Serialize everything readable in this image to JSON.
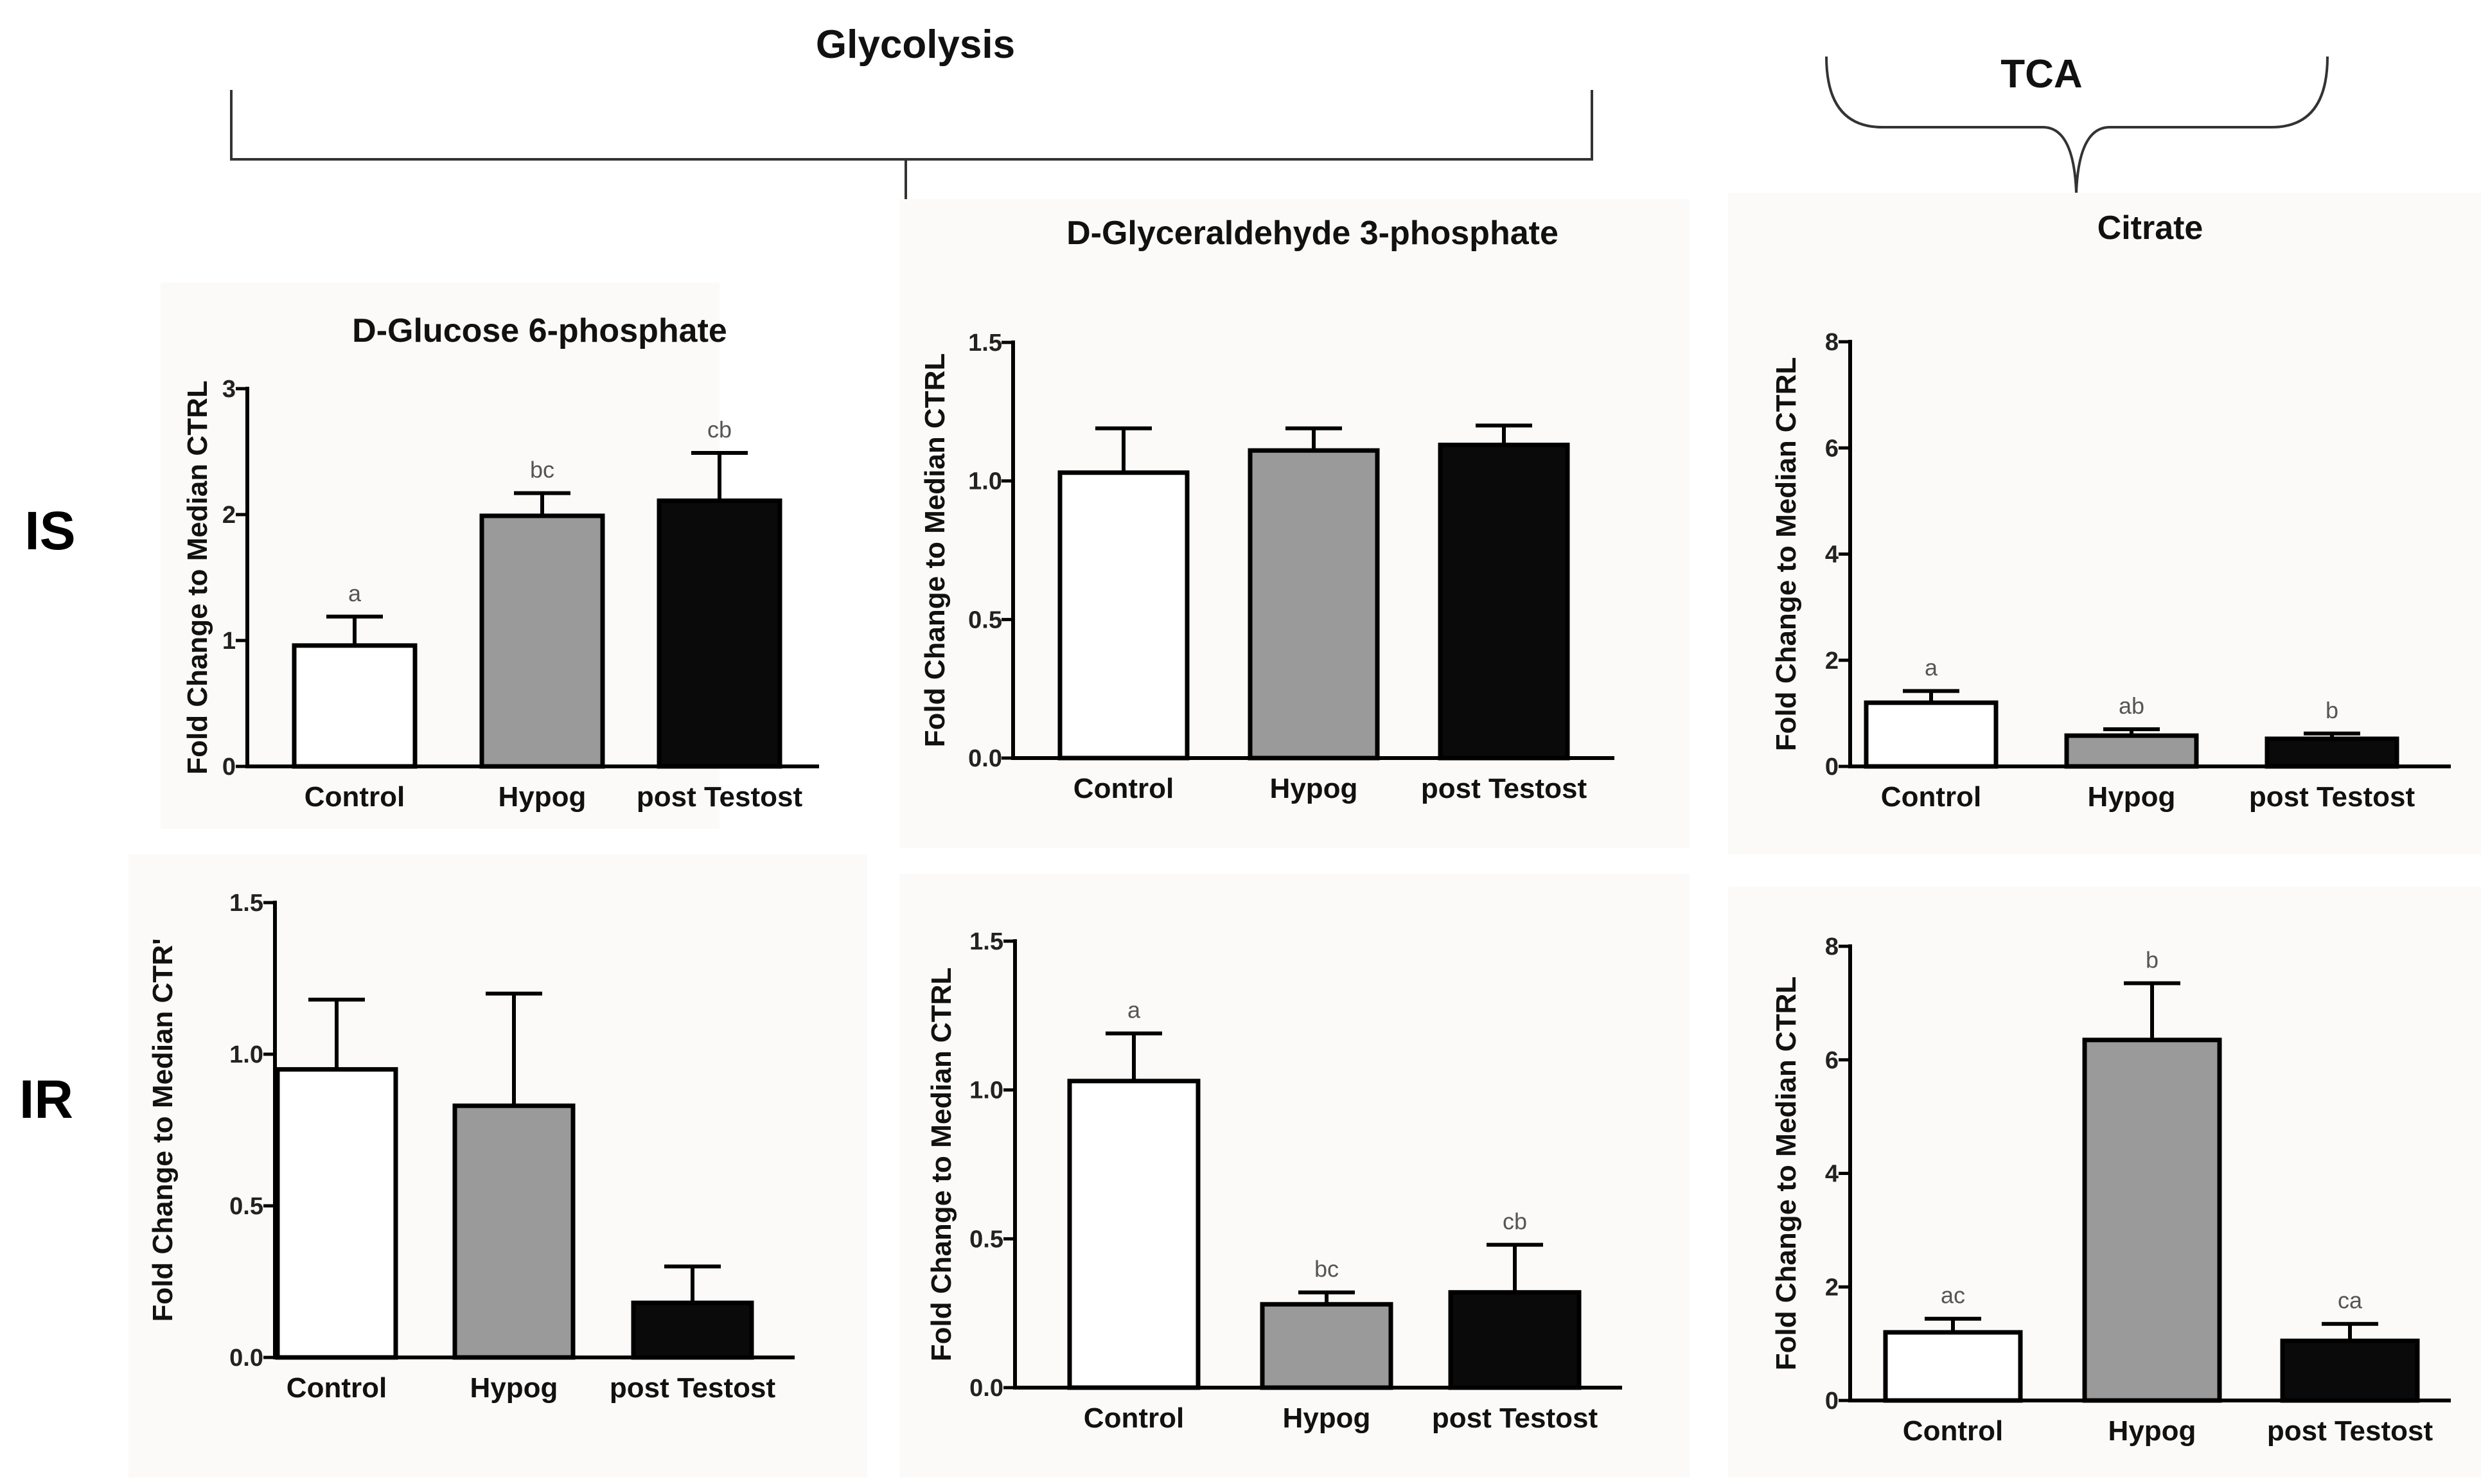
{
  "groups": {
    "glycolysis": "Glycolysis",
    "tca": "TCA"
  },
  "rows": {
    "is": "IS",
    "ir": "IR"
  },
  "colors": {
    "control": "#ffffff",
    "hypog": "#9a9a9a",
    "post_testost": "#0a0a0a",
    "axis": "#000000",
    "panel_background": "#fbfaf8"
  },
  "chart_data": [
    {
      "id": "is-g6p",
      "type": "bar",
      "title": "D-Glucose 6-phosphate",
      "ylabel": "Fold  Change to  Median CTRL",
      "categories": [
        "Control",
        "Hypog",
        "post Testost"
      ],
      "values": [
        0.96,
        1.99,
        2.11
      ],
      "errors": [
        0.23,
        0.18,
        0.38
      ],
      "significance": [
        "a",
        "bc",
        "cb"
      ],
      "ylim": [
        0,
        3
      ],
      "yticks": [
        0,
        1,
        2,
        3
      ],
      "ytick_labels": [
        "0",
        "1",
        "2",
        "3"
      ]
    },
    {
      "id": "is-g3p",
      "type": "bar",
      "title": "D-Glyceraldehyde 3-phosphate",
      "ylabel": "Fold  Change to  Median CTRL",
      "categories": [
        "Control",
        "Hypog",
        "post Testost"
      ],
      "values": [
        1.03,
        1.11,
        1.13
      ],
      "errors": [
        0.16,
        0.08,
        0.07
      ],
      "significance": [
        "",
        "",
        ""
      ],
      "ylim": [
        0,
        1.5
      ],
      "yticks": [
        0,
        0.5,
        1.0,
        1.5
      ],
      "ytick_labels": [
        "0.0",
        "0.5",
        "1.0",
        "1.5"
      ]
    },
    {
      "id": "is-citrate",
      "type": "bar",
      "title": "Citrate",
      "ylabel": "Fold  Change to  Median CTRL",
      "categories": [
        "Control",
        "Hypog",
        "post Testost"
      ],
      "values": [
        1.2,
        0.58,
        0.52
      ],
      "errors": [
        0.22,
        0.12,
        0.1
      ],
      "significance": [
        "a",
        "ab",
        "b"
      ],
      "ylim": [
        0,
        8
      ],
      "yticks": [
        0,
        2,
        4,
        6,
        8
      ],
      "ytick_labels": [
        "0",
        "2",
        "4",
        "6",
        "8"
      ]
    },
    {
      "id": "ir-g6p",
      "type": "bar",
      "title": "",
      "ylabel": "Fold  Change to  Median CTR'",
      "categories": [
        "Control",
        "Hypog",
        "post Testost"
      ],
      "values": [
        0.95,
        0.83,
        0.18
      ],
      "errors": [
        0.23,
        0.37,
        0.12
      ],
      "significance": [
        "",
        "",
        ""
      ],
      "ylim": [
        0,
        1.5
      ],
      "yticks": [
        0,
        0.5,
        1.0,
        1.5
      ],
      "ytick_labels": [
        "0.0",
        "0.5",
        "1.0",
        "1.5"
      ]
    },
    {
      "id": "ir-g3p",
      "type": "bar",
      "title": "",
      "ylabel": "Fold  Change to  Median CTRL",
      "categories": [
        "Control",
        "Hypog",
        "post Testost"
      ],
      "values": [
        1.03,
        0.28,
        0.32
      ],
      "errors": [
        0.16,
        0.04,
        0.16
      ],
      "significance": [
        "a",
        "bc",
        "cb"
      ],
      "ylim": [
        0,
        1.5
      ],
      "yticks": [
        0,
        0.5,
        1.0,
        1.5
      ],
      "ytick_labels": [
        "0.0",
        "0.5",
        "1.0",
        "1.5"
      ]
    },
    {
      "id": "ir-citrate",
      "type": "bar",
      "title": "",
      "ylabel": "Fold  Change to  Median CTRL",
      "categories": [
        "Control",
        "Hypog",
        "post Testost"
      ],
      "values": [
        1.2,
        6.35,
        1.05
      ],
      "errors": [
        0.24,
        1.0,
        0.3
      ],
      "significance": [
        "ac",
        "b",
        "ca"
      ],
      "ylim": [
        0,
        8
      ],
      "yticks": [
        0,
        2,
        4,
        6,
        8
      ],
      "ytick_labels": [
        "0",
        "2",
        "4",
        "6",
        "8"
      ]
    }
  ]
}
